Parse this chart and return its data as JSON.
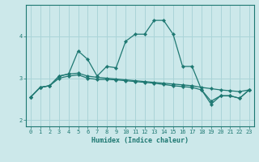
{
  "title": "",
  "xlabel": "Humidex (Indice chaleur)",
  "background_color": "#cce8ea",
  "grid_color": "#aad4d8",
  "line_color": "#1e7872",
  "xlim": [
    -0.5,
    23.5
  ],
  "ylim": [
    1.85,
    4.75
  ],
  "yticks": [
    2,
    3,
    4
  ],
  "xticks": [
    0,
    1,
    2,
    3,
    4,
    5,
    6,
    7,
    8,
    9,
    10,
    11,
    12,
    13,
    14,
    15,
    16,
    17,
    18,
    19,
    20,
    21,
    22,
    23
  ],
  "series": [
    {
      "x": [
        0,
        1,
        2,
        3,
        4,
        5,
        6,
        7,
        8,
        9,
        10,
        11,
        12,
        13,
        14,
        15,
        16,
        17,
        18,
        19,
        20,
        21,
        22,
        23
      ],
      "y": [
        2.55,
        2.78,
        2.82,
        3.05,
        3.1,
        3.65,
        3.45,
        3.05,
        3.28,
        3.25,
        3.88,
        4.05,
        4.05,
        4.38,
        4.38,
        4.05,
        3.28,
        3.28,
        2.72,
        2.38,
        2.58,
        2.58,
        2.52,
        2.72
      ]
    },
    {
      "x": [
        0,
        1,
        2,
        3,
        4,
        5,
        6,
        7,
        8,
        9,
        10,
        11,
        12,
        13,
        14,
        15,
        16,
        17,
        18,
        19,
        20,
        21,
        22,
        23
      ],
      "y": [
        2.55,
        2.78,
        2.82,
        3.05,
        3.1,
        3.12,
        3.05,
        3.02,
        3.0,
        2.98,
        2.96,
        2.94,
        2.92,
        2.9,
        2.88,
        2.86,
        2.84,
        2.82,
        2.78,
        2.75,
        2.72,
        2.7,
        2.68,
        2.72
      ]
    },
    {
      "x": [
        0,
        1,
        2,
        3,
        4,
        5,
        6,
        7,
        8,
        9,
        10,
        11,
        12,
        13,
        14,
        15,
        16,
        17,
        18,
        19,
        20,
        21,
        22,
        23
      ],
      "y": [
        2.55,
        2.78,
        2.82,
        3.0,
        3.05,
        3.08,
        3.0,
        2.97,
        2.97,
        2.96,
        2.94,
        2.92,
        2.9,
        2.88,
        2.85,
        2.82,
        2.8,
        2.78,
        2.72,
        2.45,
        2.58,
        2.58,
        2.52,
        2.72
      ]
    }
  ],
  "fig_width": 3.2,
  "fig_height": 2.0,
  "dpi": 100
}
